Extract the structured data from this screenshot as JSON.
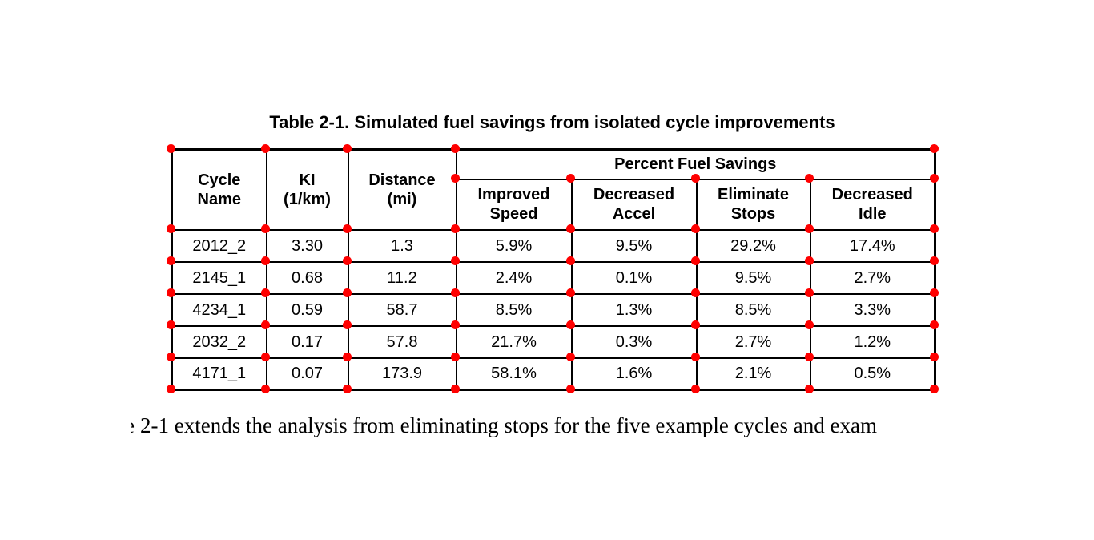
{
  "title": "Table 2-1. Simulated fuel savings from isolated cycle improvements",
  "table": {
    "marker_color": "#ff0000",
    "columns": [
      {
        "label": "Cycle\nName"
      },
      {
        "label": "KI\n(1/km)"
      },
      {
        "label": "Distance\n(mi)"
      }
    ],
    "group_header": "Percent Fuel Savings",
    "sub_columns": [
      "Improved\nSpeed",
      "Decreased\nAccel",
      "Eliminate\nStops",
      "Decreased\nIdle"
    ],
    "rows": [
      [
        "2012_2",
        "3.30",
        "1.3",
        "5.9%",
        "9.5%",
        "29.2%",
        "17.4%"
      ],
      [
        "2145_1",
        "0.68",
        "11.2",
        "2.4%",
        "0.1%",
        "9.5%",
        "2.7%"
      ],
      [
        "4234_1",
        "0.59",
        "58.7",
        "8.5%",
        "1.3%",
        "8.5%",
        "3.3%"
      ],
      [
        "2032_2",
        "0.17",
        "57.8",
        "21.7%",
        "0.3%",
        "2.7%",
        "1.2%"
      ],
      [
        "4171_1",
        "0.07",
        "173.9",
        "58.1%",
        "1.6%",
        "2.1%",
        "0.5%"
      ]
    ]
  },
  "body_text": {
    "cut_letter_fragment": "e",
    "text": "2-1 extends the analysis from eliminating stops for the five example cycles and exam"
  }
}
